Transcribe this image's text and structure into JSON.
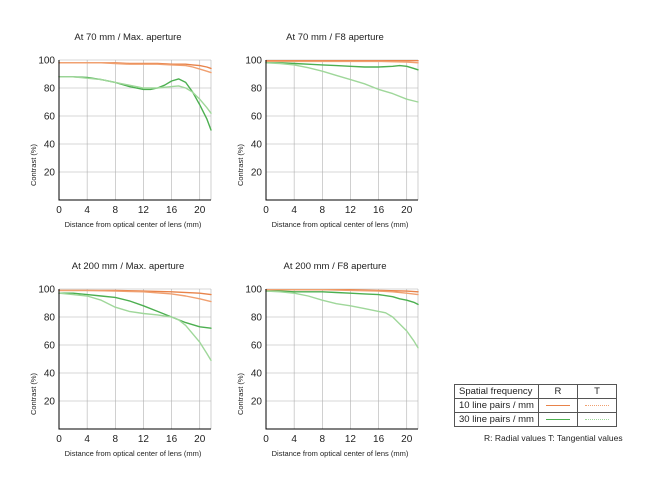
{
  "colors": {
    "r10": "#e8834a",
    "t10": "#f0a070",
    "r30": "#4caf50",
    "t30": "#9fd79a",
    "grid": "#b0b0b0",
    "axis": "#000000"
  },
  "legend": {
    "header": "Spatial frequency",
    "col_r": "R",
    "col_t": "T",
    "row10": "10 line pairs / mm",
    "row30": "30 line pairs / mm",
    "note": "R: Radial values  T: Tangential values"
  },
  "chart_data": [
    {
      "type": "line",
      "title": "At 70 mm / Max. aperture",
      "xlabel": "Distance from optical center of lens (mm)",
      "ylabel": "Contrast (%)",
      "xlim": [
        0,
        21.6
      ],
      "ylim": [
        0,
        100
      ],
      "xticks": [
        0,
        4,
        8,
        12,
        16,
        20
      ],
      "yticks": [
        20,
        40,
        60,
        80,
        100
      ],
      "grid": true,
      "series": [
        {
          "key": "r10",
          "x": [
            0,
            2,
            4,
            6,
            8,
            10,
            12,
            14,
            16,
            18,
            19,
            20,
            21,
            21.6
          ],
          "y": [
            98,
            98,
            98,
            98,
            98,
            97.5,
            97.5,
            97.5,
            97,
            97,
            96.5,
            96,
            95,
            94
          ]
        },
        {
          "key": "t10",
          "x": [
            0,
            2,
            4,
            6,
            8,
            10,
            12,
            14,
            16,
            18,
            19,
            20,
            21,
            21.6
          ],
          "y": [
            98,
            98,
            98,
            98,
            97.5,
            97,
            97,
            97,
            96.5,
            96,
            95,
            93.5,
            92,
            91
          ]
        },
        {
          "key": "r30",
          "x": [
            0,
            2,
            4,
            6,
            8,
            10,
            12,
            13,
            14,
            15,
            16,
            17,
            18,
            19,
            20,
            21,
            21.6
          ],
          "y": [
            88,
            88,
            87.5,
            86,
            84,
            81,
            79,
            79,
            80,
            82,
            85,
            86.5,
            84,
            77,
            68,
            58,
            50
          ]
        },
        {
          "key": "t30",
          "x": [
            0,
            2,
            4,
            6,
            8,
            10,
            12,
            14,
            16,
            17,
            18,
            19,
            20,
            21,
            21.6
          ],
          "y": [
            88,
            88,
            87,
            86,
            84,
            82,
            80,
            80,
            81,
            81.5,
            80,
            77,
            72,
            66,
            62
          ]
        }
      ]
    },
    {
      "type": "line",
      "title": "At 70 mm / F8 aperture",
      "xlabel": "Distance from optical center of lens (mm)",
      "ylabel": "Contrast (%)",
      "xlim": [
        0,
        21.6
      ],
      "ylim": [
        0,
        100
      ],
      "xticks": [
        0,
        4,
        8,
        12,
        16,
        20
      ],
      "yticks": [
        20,
        40,
        60,
        80,
        100
      ],
      "grid": true,
      "series": [
        {
          "key": "r10",
          "x": [
            0,
            4,
            8,
            12,
            16,
            20,
            21.6
          ],
          "y": [
            99.5,
            99.5,
            99.5,
            99.5,
            99.5,
            99.5,
            99.5
          ]
        },
        {
          "key": "t10",
          "x": [
            0,
            4,
            8,
            12,
            16,
            20,
            21.6
          ],
          "y": [
            99,
            99,
            99,
            99,
            99,
            98.5,
            98
          ]
        },
        {
          "key": "r30",
          "x": [
            0,
            2,
            4,
            6,
            8,
            10,
            12,
            14,
            16,
            18,
            19,
            20,
            21,
            21.6
          ],
          "y": [
            98,
            98,
            97.5,
            97,
            96.5,
            96,
            95.5,
            95,
            95,
            95.5,
            96,
            95.5,
            94,
            93
          ]
        },
        {
          "key": "t30",
          "x": [
            0,
            2,
            4,
            6,
            8,
            10,
            12,
            14,
            16,
            18,
            20,
            21.6
          ],
          "y": [
            98,
            97.5,
            96.5,
            94.5,
            92,
            89,
            86,
            83,
            79,
            76,
            72,
            70
          ]
        }
      ]
    },
    {
      "type": "line",
      "title": "At 200 mm / Max. aperture",
      "xlabel": "Distance from optical center of lens (mm)",
      "ylabel": "Contrast (%)",
      "xlim": [
        0,
        21.6
      ],
      "ylim": [
        0,
        100
      ],
      "xticks": [
        0,
        4,
        8,
        12,
        16,
        20
      ],
      "yticks": [
        20,
        40,
        60,
        80,
        100
      ],
      "grid": true,
      "series": [
        {
          "key": "r10",
          "x": [
            0,
            4,
            8,
            12,
            16,
            20,
            21.6
          ],
          "y": [
            99,
            99,
            99,
            98.5,
            98,
            97,
            96
          ]
        },
        {
          "key": "t10",
          "x": [
            0,
            4,
            8,
            12,
            16,
            18,
            20,
            21.6
          ],
          "y": [
            99,
            99,
            98.5,
            98,
            96.5,
            95,
            93,
            91
          ]
        },
        {
          "key": "r30",
          "x": [
            0,
            2,
            4,
            6,
            8,
            10,
            12,
            14,
            16,
            18,
            20,
            21.6
          ],
          "y": [
            97,
            97,
            96,
            95,
            94,
            91.5,
            88,
            84,
            80,
            76,
            73,
            72
          ]
        },
        {
          "key": "t30",
          "x": [
            0,
            2,
            4,
            6,
            8,
            10,
            12,
            14,
            16,
            17,
            18,
            19,
            20,
            21,
            21.6
          ],
          "y": [
            97,
            96,
            95,
            92,
            87,
            84,
            82.5,
            81.5,
            80,
            78,
            74,
            68,
            62,
            54,
            49
          ]
        }
      ]
    },
    {
      "type": "line",
      "title": "At 200 mm / F8 aperture",
      "xlabel": "Distance from optical center of lens (mm)",
      "ylabel": "Contrast (%)",
      "xlim": [
        0,
        21.6
      ],
      "ylim": [
        0,
        100
      ],
      "xticks": [
        0,
        4,
        8,
        12,
        16,
        20
      ],
      "yticks": [
        20,
        40,
        60,
        80,
        100
      ],
      "grid": true,
      "series": [
        {
          "key": "r10",
          "x": [
            0,
            4,
            8,
            12,
            16,
            20,
            21.6
          ],
          "y": [
            99.5,
            99.5,
            99.5,
            99.5,
            99,
            98.5,
            98
          ]
        },
        {
          "key": "t10",
          "x": [
            0,
            4,
            8,
            12,
            16,
            18,
            20,
            21.6
          ],
          "y": [
            99.5,
            99.5,
            99.5,
            99,
            98.5,
            98,
            97,
            96
          ]
        },
        {
          "key": "r30",
          "x": [
            0,
            2,
            4,
            6,
            8,
            10,
            12,
            14,
            16,
            18,
            19,
            20,
            21,
            21.6
          ],
          "y": [
            98.5,
            98.5,
            98,
            98,
            98,
            97.5,
            97,
            96.5,
            96,
            94.5,
            93,
            92,
            90.5,
            89
          ]
        },
        {
          "key": "t30",
          "x": [
            0,
            2,
            4,
            6,
            8,
            10,
            12,
            14,
            16,
            17,
            18,
            19,
            20,
            21,
            21.6
          ],
          "y": [
            98.5,
            98,
            97,
            95,
            92,
            89.5,
            88,
            86,
            84,
            83,
            80,
            75,
            70,
            63,
            58
          ]
        }
      ]
    }
  ]
}
